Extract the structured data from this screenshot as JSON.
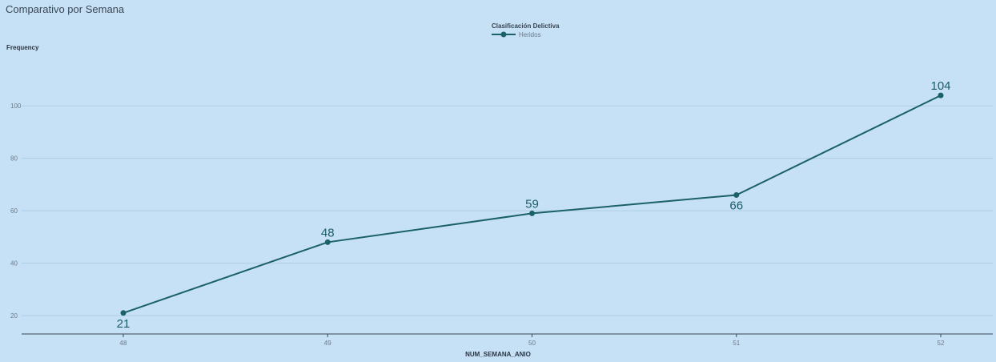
{
  "panel": {
    "title": "Comparativo por Semana"
  },
  "colors": {
    "background": "#c6e0f5",
    "line": "#1b6168",
    "grid": "#b0cde6",
    "axis": "#3b4652"
  },
  "chart_data": {
    "type": "line",
    "xlabel": "NUM_SEMANA_ANIO",
    "ylabel": "Frequency",
    "legend_title": "Clasificación Delictiva",
    "legend_position": "top-center",
    "categories": [
      "48",
      "49",
      "50",
      "51",
      "52"
    ],
    "series": [
      {
        "name": "Heridos",
        "values": [
          21,
          48,
          59,
          66,
          104
        ]
      }
    ],
    "ylim": [
      13,
      119
    ],
    "yticks": [
      "20",
      "40",
      "60",
      "80",
      "100"
    ],
    "grid": true,
    "data_labels": true
  }
}
